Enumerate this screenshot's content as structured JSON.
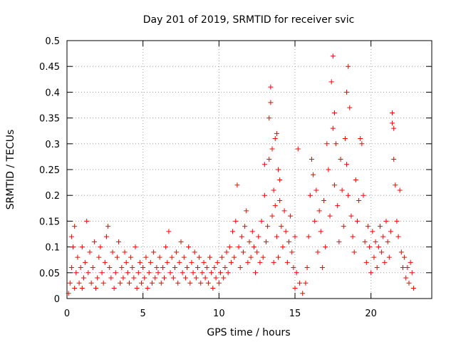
{
  "chart_data": {
    "type": "scatter",
    "title": "Day 201 of 2019, SRMTID for receiver svic",
    "xlabel": "GPS time / hours",
    "ylabel": "SRMTID / TECUs",
    "xlim": [
      0,
      24
    ],
    "ylim": [
      0,
      0.5
    ],
    "x_ticks": [
      0,
      5,
      10,
      15,
      20
    ],
    "x_tick_labels": [
      "0",
      "5",
      "10",
      "15",
      "20"
    ],
    "y_ticks": [
      0,
      0.05,
      0.1,
      0.15,
      0.2,
      0.25,
      0.3,
      0.35,
      0.4,
      0.45,
      0.5
    ],
    "y_tick_labels": [
      "0",
      "0.05",
      "0.1",
      "0.15",
      "0.2",
      "0.25",
      "0.3",
      "0.35",
      "0.4",
      "0.45",
      "0.5"
    ],
    "grid": true,
    "marker": "+",
    "marker_color": "#ff0000",
    "series": [
      {
        "name": "SRMTID",
        "points": [
          [
            0.1,
            0.01
          ],
          [
            0.2,
            0.03
          ],
          [
            0.3,
            0.06
          ],
          [
            0.3,
            0.12
          ],
          [
            0.4,
            0.1
          ],
          [
            0.5,
            0.14
          ],
          [
            0.5,
            0.02
          ],
          [
            0.6,
            0.05
          ],
          [
            0.7,
            0.08
          ],
          [
            0.8,
            0.03
          ],
          [
            0.9,
            0.06
          ],
          [
            1.0,
            0.1
          ],
          [
            1.0,
            0.02
          ],
          [
            1.1,
            0.04
          ],
          [
            1.2,
            0.07
          ],
          [
            1.3,
            0.15
          ],
          [
            1.4,
            0.05
          ],
          [
            1.5,
            0.09
          ],
          [
            1.6,
            0.03
          ],
          [
            1.7,
            0.06
          ],
          [
            1.8,
            0.11
          ],
          [
            1.9,
            0.02
          ],
          [
            2.0,
            0.04
          ],
          [
            2.1,
            0.08
          ],
          [
            2.2,
            0.1
          ],
          [
            2.3,
            0.05
          ],
          [
            2.4,
            0.03
          ],
          [
            2.5,
            0.07
          ],
          [
            2.6,
            0.12
          ],
          [
            2.7,
            0.14
          ],
          [
            2.8,
            0.06
          ],
          [
            2.9,
            0.04
          ],
          [
            3.0,
            0.09
          ],
          [
            3.1,
            0.02
          ],
          [
            3.2,
            0.05
          ],
          [
            3.3,
            0.08
          ],
          [
            3.4,
            0.11
          ],
          [
            3.5,
            0.03
          ],
          [
            3.6,
            0.06
          ],
          [
            3.7,
            0.04
          ],
          [
            3.8,
            0.09
          ],
          [
            3.9,
            0.07
          ],
          [
            4.0,
            0.05
          ],
          [
            4.1,
            0.03
          ],
          [
            4.2,
            0.08
          ],
          [
            4.3,
            0.06
          ],
          [
            4.4,
            0.04
          ],
          [
            4.5,
            0.1
          ],
          [
            4.6,
            0.02
          ],
          [
            4.7,
            0.05
          ],
          [
            4.8,
            0.07
          ],
          [
            4.9,
            0.03
          ],
          [
            5.0,
            0.06
          ],
          [
            5.1,
            0.04
          ],
          [
            5.2,
            0.08
          ],
          [
            5.3,
            0.02
          ],
          [
            5.4,
            0.05
          ],
          [
            5.5,
            0.07
          ],
          [
            5.6,
            0.03
          ],
          [
            5.7,
            0.09
          ],
          [
            5.8,
            0.04
          ],
          [
            5.9,
            0.06
          ],
          [
            6.0,
            0.05
          ],
          [
            6.1,
            0.08
          ],
          [
            6.2,
            0.03
          ],
          [
            6.3,
            0.06
          ],
          [
            6.4,
            0.04
          ],
          [
            6.5,
            0.1
          ],
          [
            6.6,
            0.07
          ],
          [
            6.7,
            0.13
          ],
          [
            6.8,
            0.05
          ],
          [
            6.9,
            0.08
          ],
          [
            7.0,
            0.04
          ],
          [
            7.1,
            0.06
          ],
          [
            7.2,
            0.09
          ],
          [
            7.3,
            0.03
          ],
          [
            7.4,
            0.07
          ],
          [
            7.5,
            0.11
          ],
          [
            7.6,
            0.05
          ],
          [
            7.7,
            0.08
          ],
          [
            7.8,
            0.04
          ],
          [
            7.9,
            0.06
          ],
          [
            8.0,
            0.1
          ],
          [
            8.1,
            0.03
          ],
          [
            8.2,
            0.07
          ],
          [
            8.3,
            0.05
          ],
          [
            8.4,
            0.09
          ],
          [
            8.5,
            0.04
          ],
          [
            8.6,
            0.06
          ],
          [
            8.7,
            0.08
          ],
          [
            8.8,
            0.03
          ],
          [
            8.9,
            0.05
          ],
          [
            9.0,
            0.07
          ],
          [
            9.1,
            0.04
          ],
          [
            9.2,
            0.06
          ],
          [
            9.3,
            0.03
          ],
          [
            9.4,
            0.08
          ],
          [
            9.5,
            0.05
          ],
          [
            9.6,
            0.02
          ],
          [
            9.7,
            0.06
          ],
          [
            9.8,
            0.04
          ],
          [
            9.9,
            0.07
          ],
          [
            10.0,
            0.03
          ],
          [
            10.1,
            0.05
          ],
          [
            10.2,
            0.08
          ],
          [
            10.3,
            0.04
          ],
          [
            10.4,
            0.06
          ],
          [
            10.5,
            0.09
          ],
          [
            10.6,
            0.05
          ],
          [
            10.7,
            0.1
          ],
          [
            10.8,
            0.07
          ],
          [
            10.9,
            0.13
          ],
          [
            11.0,
            0.08
          ],
          [
            11.1,
            0.15
          ],
          [
            11.2,
            0.22
          ],
          [
            11.3,
            0.1
          ],
          [
            11.4,
            0.06
          ],
          [
            11.5,
            0.12
          ],
          [
            11.6,
            0.09
          ],
          [
            11.7,
            0.14
          ],
          [
            11.8,
            0.17
          ],
          [
            11.9,
            0.07
          ],
          [
            12.0,
            0.11
          ],
          [
            12.1,
            0.08
          ],
          [
            12.2,
            0.13
          ],
          [
            12.3,
            0.1
          ],
          [
            12.4,
            0.05
          ],
          [
            12.5,
            0.09
          ],
          [
            12.6,
            0.12
          ],
          [
            12.7,
            0.07
          ],
          [
            12.8,
            0.15
          ],
          [
            12.9,
            0.08
          ],
          [
            13.0,
            0.2
          ],
          [
            13.0,
            0.26
          ],
          [
            13.1,
            0.11
          ],
          [
            13.2,
            0.14
          ],
          [
            13.3,
            0.27
          ],
          [
            13.3,
            0.35
          ],
          [
            13.4,
            0.41
          ],
          [
            13.4,
            0.38
          ],
          [
            13.5,
            0.29
          ],
          [
            13.5,
            0.16
          ],
          [
            13.6,
            0.07
          ],
          [
            13.6,
            0.21
          ],
          [
            13.7,
            0.31
          ],
          [
            13.7,
            0.18
          ],
          [
            13.8,
            0.32
          ],
          [
            13.8,
            0.12
          ],
          [
            13.9,
            0.25
          ],
          [
            13.9,
            0.08
          ],
          [
            14.0,
            0.19
          ],
          [
            14.0,
            0.23
          ],
          [
            14.1,
            0.14
          ],
          [
            14.2,
            0.1
          ],
          [
            14.3,
            0.17
          ],
          [
            14.4,
            0.13
          ],
          [
            14.5,
            0.07
          ],
          [
            14.6,
            0.11
          ],
          [
            14.7,
            0.16
          ],
          [
            14.8,
            0.09
          ],
          [
            14.9,
            0.06
          ],
          [
            15.0,
            0.12
          ],
          [
            15.0,
            0.02
          ],
          [
            15.1,
            0.05
          ],
          [
            15.2,
            0.29
          ],
          [
            15.3,
            0.03
          ],
          [
            15.5,
            0.01
          ],
          [
            15.7,
            0.03
          ],
          [
            15.8,
            0.06
          ],
          [
            15.9,
            0.12
          ],
          [
            16.0,
            0.2
          ],
          [
            16.1,
            0.27
          ],
          [
            16.2,
            0.24
          ],
          [
            16.3,
            0.15
          ],
          [
            16.4,
            0.21
          ],
          [
            16.5,
            0.09
          ],
          [
            16.6,
            0.17
          ],
          [
            16.7,
            0.13
          ],
          [
            16.8,
            0.06
          ],
          [
            16.9,
            0.19
          ],
          [
            17.0,
            0.1
          ],
          [
            17.1,
            0.3
          ],
          [
            17.2,
            0.25
          ],
          [
            17.3,
            0.16
          ],
          [
            17.4,
            0.42
          ],
          [
            17.5,
            0.47
          ],
          [
            17.5,
            0.33
          ],
          [
            17.6,
            0.36
          ],
          [
            17.6,
            0.22
          ],
          [
            17.7,
            0.3
          ],
          [
            17.8,
            0.18
          ],
          [
            17.9,
            0.11
          ],
          [
            18.0,
            0.27
          ],
          [
            18.1,
            0.21
          ],
          [
            18.2,
            0.14
          ],
          [
            18.3,
            0.31
          ],
          [
            18.4,
            0.4
          ],
          [
            18.4,
            0.26
          ],
          [
            18.5,
            0.45
          ],
          [
            18.5,
            0.2
          ],
          [
            18.6,
            0.37
          ],
          [
            18.7,
            0.16
          ],
          [
            18.8,
            0.12
          ],
          [
            18.9,
            0.09
          ],
          [
            19.0,
            0.23
          ],
          [
            19.1,
            0.15
          ],
          [
            19.2,
            0.19
          ],
          [
            19.3,
            0.31
          ],
          [
            19.4,
            0.3
          ],
          [
            19.5,
            0.2
          ],
          [
            19.6,
            0.11
          ],
          [
            19.7,
            0.07
          ],
          [
            19.8,
            0.14
          ],
          [
            19.9,
            0.1
          ],
          [
            20.0,
            0.05
          ],
          [
            20.1,
            0.13
          ],
          [
            20.2,
            0.08
          ],
          [
            20.3,
            0.11
          ],
          [
            20.4,
            0.06
          ],
          [
            20.5,
            0.1
          ],
          [
            20.6,
            0.14
          ],
          [
            20.7,
            0.09
          ],
          [
            20.8,
            0.12
          ],
          [
            20.9,
            0.07
          ],
          [
            21.0,
            0.15
          ],
          [
            21.1,
            0.11
          ],
          [
            21.2,
            0.08
          ],
          [
            21.3,
            0.13
          ],
          [
            21.4,
            0.34
          ],
          [
            21.4,
            0.36
          ],
          [
            21.5,
            0.33
          ],
          [
            21.5,
            0.27
          ],
          [
            21.6,
            0.22
          ],
          [
            21.7,
            0.15
          ],
          [
            21.8,
            0.12
          ],
          [
            21.9,
            0.21
          ],
          [
            22.0,
            0.09
          ],
          [
            22.1,
            0.06
          ],
          [
            22.2,
            0.08
          ],
          [
            22.3,
            0.04
          ],
          [
            22.4,
            0.06
          ],
          [
            22.5,
            0.03
          ],
          [
            22.6,
            0.07
          ],
          [
            22.7,
            0.05
          ],
          [
            22.8,
            0.02
          ]
        ]
      }
    ]
  }
}
